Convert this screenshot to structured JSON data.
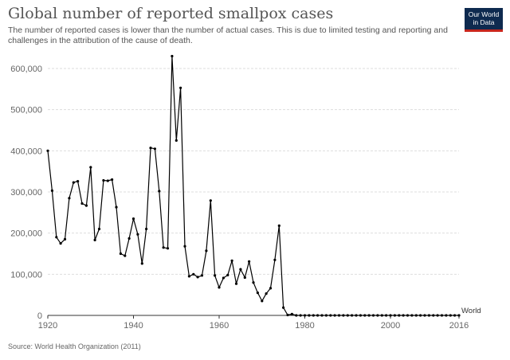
{
  "header": {
    "title": "Global number of reported smallpox cases",
    "subtitle": "The number of reported cases is lower than the number of actual cases. This is due to limited testing and reporting and challenges in the attribution of the cause of death."
  },
  "logo": {
    "line1": "Our World",
    "line2": "in Data"
  },
  "footer": {
    "source": "Source: World Health Organization (2011)"
  },
  "chart_data": {
    "type": "line",
    "title": "Global number of reported smallpox cases",
    "xlabel": "",
    "ylabel": "",
    "xlim": [
      1920,
      2016
    ],
    "ylim": [
      0,
      600000
    ],
    "grid": true,
    "y_ticks": [
      0,
      100000,
      200000,
      300000,
      400000,
      500000,
      600000
    ],
    "y_tick_labels": [
      "0",
      "100,000",
      "200,000",
      "300,000",
      "400,000",
      "500,000",
      "600,000"
    ],
    "x_ticks": [
      1920,
      1940,
      1960,
      1980,
      2000,
      2016
    ],
    "x_tick_labels": [
      "1920",
      "1940",
      "1960",
      "1980",
      "2000",
      "2016"
    ],
    "colors": {
      "line": "#000000",
      "grid": "#dddddd",
      "axis": "#333333"
    },
    "series": [
      {
        "name": "World",
        "x": [
          1920,
          1921,
          1922,
          1923,
          1924,
          1925,
          1926,
          1927,
          1928,
          1929,
          1930,
          1931,
          1932,
          1933,
          1934,
          1935,
          1936,
          1937,
          1938,
          1939,
          1940,
          1941,
          1942,
          1943,
          1944,
          1945,
          1946,
          1947,
          1948,
          1949,
          1950,
          1951,
          1952,
          1953,
          1954,
          1955,
          1956,
          1957,
          1958,
          1959,
          1960,
          1961,
          1962,
          1963,
          1964,
          1965,
          1966,
          1967,
          1968,
          1969,
          1970,
          1971,
          1972,
          1973,
          1974,
          1975,
          1976,
          1977,
          1978,
          1979,
          1980,
          1981,
          1982,
          1983,
          1984,
          1985,
          1986,
          1987,
          1988,
          1989,
          1990,
          1991,
          1992,
          1993,
          1994,
          1995,
          1996,
          1997,
          1998,
          1999,
          2000,
          2001,
          2002,
          2003,
          2004,
          2005,
          2006,
          2007,
          2008,
          2009,
          2010,
          2011,
          2012,
          2013,
          2014,
          2015,
          2016
        ],
        "values": [
          400000,
          303000,
          190000,
          175000,
          185000,
          285000,
          323000,
          326000,
          272000,
          267000,
          360000,
          183000,
          210000,
          328000,
          327000,
          330000,
          263000,
          150000,
          145000,
          187000,
          235000,
          197000,
          126000,
          210000,
          407000,
          405000,
          302000,
          165000,
          163000,
          630000,
          425000,
          553000,
          168000,
          95000,
          100000,
          93000,
          97000,
          157000,
          279000,
          97000,
          68000,
          91000,
          98000,
          133000,
          77000,
          112000,
          92000,
          131000,
          80000,
          55000,
          35000,
          53000,
          66000,
          135000,
          218000,
          19000,
          1000,
          3000,
          0,
          0,
          0,
          0,
          0,
          0,
          0,
          0,
          0,
          0,
          0,
          0,
          0,
          0,
          0,
          0,
          0,
          0,
          0,
          0,
          0,
          0,
          0,
          0,
          0,
          0,
          0,
          0,
          0,
          0,
          0,
          0,
          0,
          0,
          0,
          0,
          0,
          0,
          0
        ]
      }
    ]
  }
}
